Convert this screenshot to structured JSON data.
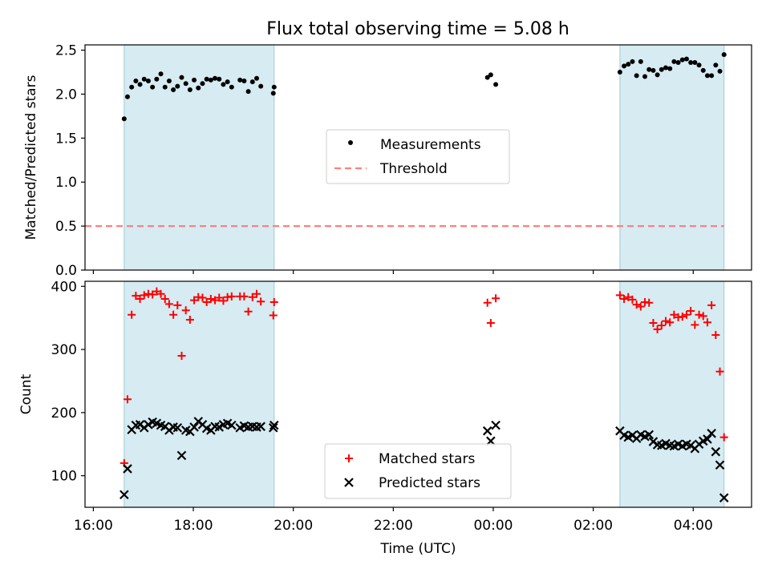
{
  "title": "Flux total observing time = 5.08 h",
  "colors": {
    "shade": "#add8e6",
    "measurement": "#000000",
    "threshold": "#ff7f7f",
    "matched": "#ff0000",
    "predicted": "#000000"
  },
  "chart_data": [
    {
      "type": "scatter",
      "ylabel": "Matched/Predicted stars",
      "ylim": [
        0,
        2.56
      ],
      "yticks": [
        "0.0",
        "0.5",
        "1.0",
        "1.5",
        "2.0",
        "2.5"
      ],
      "x_range": [
        "15:50",
        "05:10"
      ],
      "shaded_intervals": [
        [
          "16:37",
          "19:37"
        ],
        [
          "02:32",
          "04:37"
        ]
      ],
      "legend": {
        "placement": "center",
        "entries": [
          "Measurements",
          "Threshold"
        ]
      },
      "threshold": {
        "name": "Threshold",
        "y": 0.5
      },
      "series": [
        {
          "name": "Measurements",
          "points": [
            [
              "16:37",
              1.72
            ],
            [
              "16:41",
              1.97
            ],
            [
              "16:46",
              2.08
            ],
            [
              "16:51",
              2.15
            ],
            [
              "16:56",
              2.11
            ],
            [
              "17:01",
              2.17
            ],
            [
              "17:06",
              2.15
            ],
            [
              "17:11",
              2.08
            ],
            [
              "17:16",
              2.17
            ],
            [
              "17:21",
              2.23
            ],
            [
              "17:26",
              2.08
            ],
            [
              "17:31",
              2.15
            ],
            [
              "17:36",
              2.05
            ],
            [
              "17:41",
              2.09
            ],
            [
              "17:46",
              2.19
            ],
            [
              "17:51",
              2.12
            ],
            [
              "17:56",
              2.05
            ],
            [
              "18:01",
              2.16
            ],
            [
              "18:06",
              2.07
            ],
            [
              "18:11",
              2.12
            ],
            [
              "18:16",
              2.17
            ],
            [
              "18:21",
              2.16
            ],
            [
              "18:26",
              2.18
            ],
            [
              "18:31",
              2.17
            ],
            [
              "18:36",
              2.11
            ],
            [
              "18:41",
              2.14
            ],
            [
              "18:46",
              2.08
            ],
            [
              "18:56",
              2.16
            ],
            [
              "19:01",
              2.15
            ],
            [
              "19:06",
              2.03
            ],
            [
              "19:11",
              2.14
            ],
            [
              "19:16",
              2.18
            ],
            [
              "19:21",
              2.09
            ],
            [
              "19:36",
              2.01
            ],
            [
              "19:37",
              2.08
            ],
            [
              "23:53",
              2.19
            ],
            [
              "23:57",
              2.22
            ],
            [
              "00:03",
              2.11
            ],
            [
              "02:32",
              2.25
            ],
            [
              "02:37",
              2.32
            ],
            [
              "02:42",
              2.34
            ],
            [
              "02:47",
              2.37
            ],
            [
              "02:52",
              2.21
            ],
            [
              "02:57",
              2.37
            ],
            [
              "03:02",
              2.2
            ],
            [
              "03:07",
              2.28
            ],
            [
              "03:12",
              2.27
            ],
            [
              "03:17",
              2.22
            ],
            [
              "03:22",
              2.28
            ],
            [
              "03:27",
              2.3
            ],
            [
              "03:32",
              2.29
            ],
            [
              "03:37",
              2.37
            ],
            [
              "03:42",
              2.36
            ],
            [
              "03:47",
              2.39
            ],
            [
              "03:52",
              2.4
            ],
            [
              "03:57",
              2.36
            ],
            [
              "04:02",
              2.36
            ],
            [
              "04:07",
              2.33
            ],
            [
              "04:12",
              2.27
            ],
            [
              "04:17",
              2.21
            ],
            [
              "04:22",
              2.21
            ],
            [
              "04:27",
              2.33
            ],
            [
              "04:32",
              2.26
            ],
            [
              "04:37",
              2.45
            ]
          ]
        }
      ]
    },
    {
      "type": "scatter",
      "title": "",
      "xlabel": "Time (UTC)",
      "ylabel": "Count",
      "ylim": [
        50,
        408
      ],
      "yticks": [
        "100",
        "200",
        "300",
        "400"
      ],
      "xticks": [
        "16:00",
        "18:00",
        "20:00",
        "22:00",
        "00:00",
        "02:00",
        "04:00"
      ],
      "x_range": [
        "15:50",
        "05:10"
      ],
      "shaded_intervals": [
        [
          "16:37",
          "19:37"
        ],
        [
          "02:32",
          "04:37"
        ]
      ],
      "legend": {
        "placement": "lower center",
        "entries": [
          "Matched stars",
          "Predicted stars"
        ]
      },
      "series": [
        {
          "name": "Matched stars",
          "points": [
            [
              "16:37",
              120
            ],
            [
              "16:41",
              221
            ],
            [
              "16:46",
              355
            ],
            [
              "16:51",
              385
            ],
            [
              "16:56",
              380
            ],
            [
              "17:01",
              386
            ],
            [
              "17:06",
              388
            ],
            [
              "17:11",
              387
            ],
            [
              "17:16",
              392
            ],
            [
              "17:21",
              388
            ],
            [
              "17:26",
              380
            ],
            [
              "17:31",
              372
            ],
            [
              "17:36",
              355
            ],
            [
              "17:41",
              370
            ],
            [
              "17:46",
              290
            ],
            [
              "17:51",
              362
            ],
            [
              "17:56",
              347
            ],
            [
              "18:01",
              378
            ],
            [
              "18:06",
              383
            ],
            [
              "18:11",
              382
            ],
            [
              "18:16",
              375
            ],
            [
              "18:21",
              380
            ],
            [
              "18:26",
              378
            ],
            [
              "18:31",
              382
            ],
            [
              "18:36",
              377
            ],
            [
              "18:41",
              383
            ],
            [
              "18:46",
              384
            ],
            [
              "18:56",
              384
            ],
            [
              "19:01",
              384
            ],
            [
              "19:06",
              360
            ],
            [
              "19:11",
              383
            ],
            [
              "19:16",
              388
            ],
            [
              "19:21",
              376
            ],
            [
              "19:36",
              354
            ],
            [
              "19:37",
              375
            ],
            [
              "23:53",
              374
            ],
            [
              "23:57",
              342
            ],
            [
              "00:03",
              381
            ],
            [
              "02:32",
              386
            ],
            [
              "02:37",
              380
            ],
            [
              "02:42",
              383
            ],
            [
              "02:47",
              379
            ],
            [
              "02:52",
              371
            ],
            [
              "02:57",
              368
            ],
            [
              "03:02",
              375
            ],
            [
              "03:07",
              374
            ],
            [
              "03:12",
              342
            ],
            [
              "03:17",
              332
            ],
            [
              "03:22",
              338
            ],
            [
              "03:27",
              345
            ],
            [
              "03:32",
              343
            ],
            [
              "03:37",
              355
            ],
            [
              "03:42",
              351
            ],
            [
              "03:47",
              352
            ],
            [
              "03:52",
              355
            ],
            [
              "03:57",
              361
            ],
            [
              "04:02",
              339
            ],
            [
              "04:07",
              355
            ],
            [
              "04:12",
              353
            ],
            [
              "04:17",
              343
            ],
            [
              "04:22",
              370
            ],
            [
              "04:27",
              323
            ],
            [
              "04:32",
              265
            ],
            [
              "04:37",
              161
            ]
          ]
        },
        {
          "name": "Predicted stars",
          "points": [
            [
              "16:37",
              70
            ],
            [
              "16:41",
              111
            ],
            [
              "16:46",
              173
            ],
            [
              "16:51",
              180
            ],
            [
              "16:56",
              181
            ],
            [
              "17:01",
              176
            ],
            [
              "17:06",
              181
            ],
            [
              "17:11",
              185
            ],
            [
              "17:16",
              183
            ],
            [
              "17:21",
              180
            ],
            [
              "17:26",
              178
            ],
            [
              "17:31",
              172
            ],
            [
              "17:36",
              177
            ],
            [
              "17:41",
              176
            ],
            [
              "17:46",
              132
            ],
            [
              "17:51",
              172
            ],
            [
              "17:56",
              170
            ],
            [
              "18:01",
              177
            ],
            [
              "18:06",
              186
            ],
            [
              "18:11",
              181
            ],
            [
              "18:16",
              175
            ],
            [
              "18:21",
              172
            ],
            [
              "18:26",
              178
            ],
            [
              "18:31",
              177
            ],
            [
              "18:36",
              181
            ],
            [
              "18:41",
              183
            ],
            [
              "18:46",
              180
            ],
            [
              "18:56",
              176
            ],
            [
              "19:01",
              179
            ],
            [
              "19:06",
              177
            ],
            [
              "19:11",
              178
            ],
            [
              "19:16",
              177
            ],
            [
              "19:21",
              178
            ],
            [
              "19:36",
              176
            ],
            [
              "19:37",
              180
            ],
            [
              "23:53",
              171
            ],
            [
              "23:57",
              155
            ],
            [
              "00:03",
              180
            ],
            [
              "02:32",
              171
            ],
            [
              "02:37",
              164
            ],
            [
              "02:42",
              161
            ],
            [
              "02:47",
              164
            ],
            [
              "02:52",
              159
            ],
            [
              "02:57",
              165
            ],
            [
              "03:02",
              162
            ],
            [
              "03:07",
              165
            ],
            [
              "03:12",
              154
            ],
            [
              "03:17",
              149
            ],
            [
              "03:22",
              148
            ],
            [
              "03:27",
              151
            ],
            [
              "03:32",
              148
            ],
            [
              "03:37",
              147
            ],
            [
              "03:42",
              150
            ],
            [
              "03:47",
              147
            ],
            [
              "03:52",
              150
            ],
            [
              "03:57",
              148
            ],
            [
              "04:02",
              143
            ],
            [
              "04:07",
              150
            ],
            [
              "04:12",
              155
            ],
            [
              "04:17",
              158
            ],
            [
              "04:22",
              167
            ],
            [
              "04:27",
              138
            ],
            [
              "04:32",
              117
            ],
            [
              "04:37",
              65
            ]
          ]
        }
      ]
    }
  ]
}
